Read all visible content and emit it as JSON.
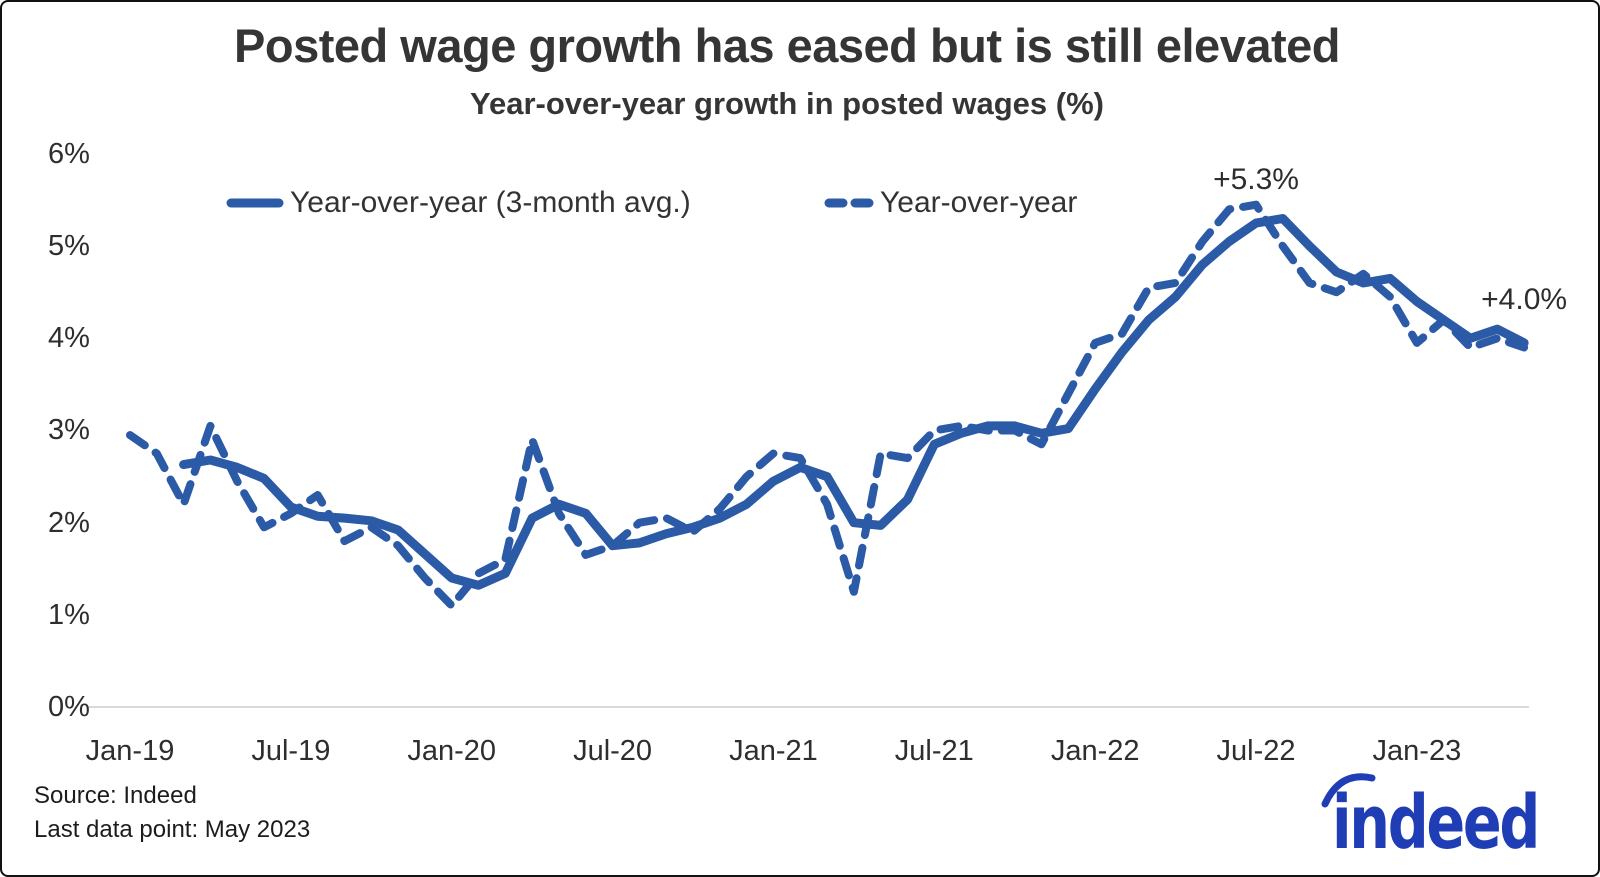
{
  "figure": {
    "title": "Posted wage growth has eased but is still elevated",
    "subtitle": "Year-over-year growth in posted wages (%)",
    "source_line1": "Source: Indeed",
    "source_line2": "Last data point: May 2023",
    "logo_text": "indeed"
  },
  "colors": {
    "line_blue": "#2B5AA7",
    "logo_blue": "#1F3EB5",
    "text_dark": "#353535",
    "gridline": "#D9D9D9"
  },
  "legend": {
    "items": [
      {
        "label": "Year-over-year (3-month avg.)",
        "style": "solid"
      },
      {
        "label": "Year-over-year",
        "style": "dashed"
      }
    ]
  },
  "chart_data": {
    "type": "line",
    "title": "Posted wage growth has eased but is still elevated",
    "subtitle": "Year-over-year growth in posted wages (%)",
    "ylabel": "Year-over-year growth in posted wages (%)",
    "ylim": [
      0,
      6
    ],
    "grid": "baseline-only",
    "legend_position": "top",
    "x_start": "Jan-19",
    "x_end": "May-23",
    "months": [
      "Jan-19",
      "Feb-19",
      "Mar-19",
      "Apr-19",
      "May-19",
      "Jun-19",
      "Jul-19",
      "Aug-19",
      "Sep-19",
      "Oct-19",
      "Nov-19",
      "Dec-19",
      "Jan-20",
      "Feb-20",
      "Mar-20",
      "Apr-20",
      "May-20",
      "Jun-20",
      "Jul-20",
      "Aug-20",
      "Sep-20",
      "Oct-20",
      "Nov-20",
      "Dec-20",
      "Jan-21",
      "Feb-21",
      "Mar-21",
      "Apr-21",
      "May-21",
      "Jun-21",
      "Jul-21",
      "Aug-21",
      "Sep-21",
      "Oct-21",
      "Nov-21",
      "Dec-21",
      "Jan-22",
      "Feb-22",
      "Mar-22",
      "Apr-22",
      "May-22",
      "Jun-22",
      "Jul-22",
      "Aug-22",
      "Sep-22",
      "Oct-22",
      "Nov-22",
      "Dec-22",
      "Jan-23",
      "Feb-23",
      "Mar-23",
      "Apr-23",
      "May-23"
    ],
    "y_ticks": [
      {
        "value": 6,
        "label": "6%"
      },
      {
        "value": 5,
        "label": "5%"
      },
      {
        "value": 4,
        "label": "4%"
      },
      {
        "value": 3,
        "label": "3%"
      },
      {
        "value": 2,
        "label": "2%"
      },
      {
        "value": 1,
        "label": "1%"
      },
      {
        "value": 0,
        "label": "0%"
      }
    ],
    "x_ticks": [
      {
        "index": 0,
        "label": "Jan-19"
      },
      {
        "index": 6,
        "label": "Jul-19"
      },
      {
        "index": 12,
        "label": "Jan-20"
      },
      {
        "index": 18,
        "label": "Jul-20"
      },
      {
        "index": 24,
        "label": "Jan-21"
      },
      {
        "index": 30,
        "label": "Jul-21"
      },
      {
        "index": 36,
        "label": "Jan-22"
      },
      {
        "index": 42,
        "label": "Jul-22"
      },
      {
        "index": 48,
        "label": "Jan-23"
      }
    ],
    "series": [
      {
        "id": "yoy-3mo-avg",
        "name": "Year-over-year (3-month avg.)",
        "style": "solid",
        "start_month_index": 2,
        "values": [
          2.63,
          2.68,
          2.6,
          2.48,
          2.17,
          2.07,
          2.05,
          2.02,
          1.92,
          1.66,
          1.4,
          1.32,
          1.45,
          2.05,
          2.2,
          2.1,
          1.75,
          1.78,
          1.88,
          1.95,
          2.05,
          2.2,
          2.45,
          2.6,
          2.5,
          2.0,
          1.97,
          2.25,
          2.85,
          2.97,
          3.05,
          3.05,
          2.97,
          3.02,
          3.45,
          3.85,
          4.2,
          4.45,
          4.8,
          5.05,
          5.25,
          5.3,
          5.0,
          4.72,
          4.6,
          4.65,
          4.4,
          4.2,
          4.0,
          4.1,
          3.95
        ]
      },
      {
        "id": "yoy",
        "name": "Year-over-year",
        "style": "dashed",
        "start_month_index": 0,
        "values": [
          2.95,
          2.75,
          2.2,
          3.05,
          2.45,
          1.95,
          2.1,
          2.3,
          1.8,
          1.95,
          1.75,
          1.4,
          1.1,
          1.45,
          1.6,
          2.9,
          2.1,
          1.65,
          1.75,
          2.0,
          2.05,
          1.9,
          2.15,
          2.5,
          2.75,
          2.7,
          2.2,
          1.25,
          2.75,
          2.7,
          3.0,
          3.05,
          3.0,
          3.0,
          2.85,
          3.4,
          3.95,
          4.05,
          4.55,
          4.6,
          5.05,
          5.4,
          5.45,
          5.0,
          4.6,
          4.5,
          4.7,
          4.45,
          3.95,
          4.2,
          3.9,
          4.0,
          3.9
        ]
      }
    ],
    "annotations": [
      {
        "text": "+5.3%",
        "month": "Jul-22",
        "month_index": 42,
        "value": 5.3
      },
      {
        "text": "+4.0%",
        "month": "May-23",
        "month_index": 52,
        "value": 4.0
      }
    ]
  }
}
